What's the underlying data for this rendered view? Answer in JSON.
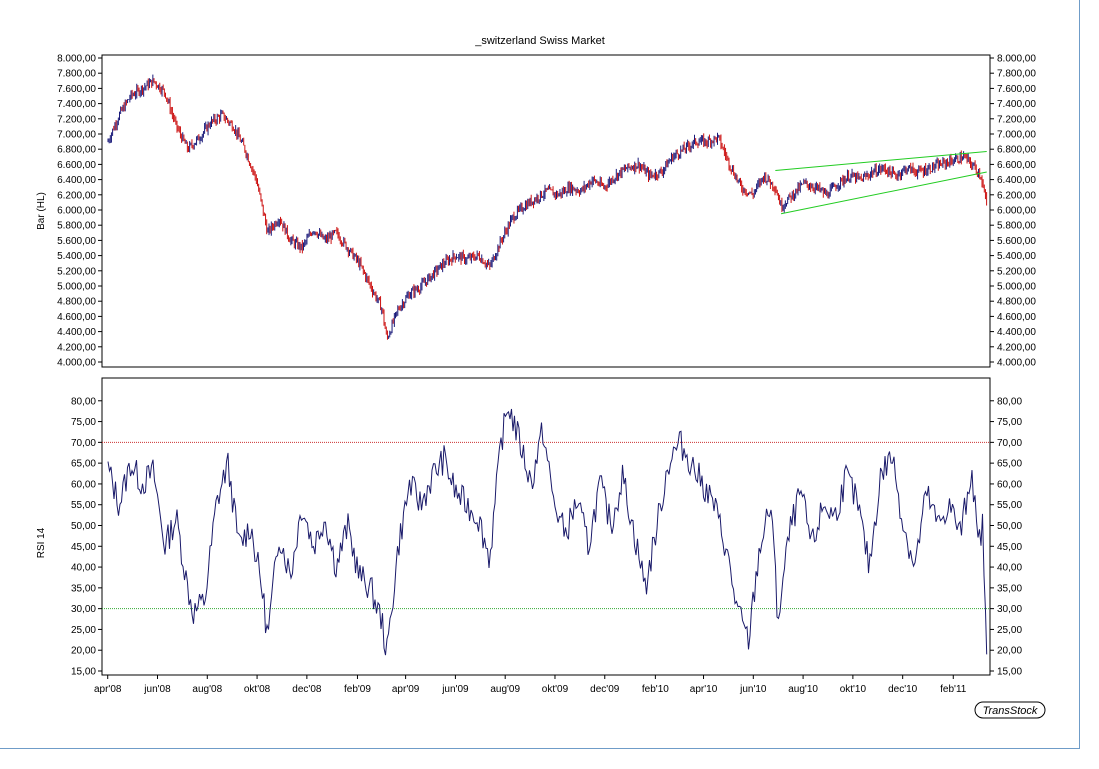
{
  "title": "_switzerland Swiss Market",
  "badge": "TransStock",
  "chart_data": [
    {
      "type": "candlestick",
      "ylabel": "Bar (HL)",
      "ylim": [
        4000,
        8000
      ],
      "yticks": [
        4000,
        4200,
        4400,
        4600,
        4800,
        5000,
        5200,
        5400,
        5600,
        5800,
        6000,
        6200,
        6400,
        6600,
        6800,
        7000,
        7200,
        7400,
        7600,
        7800,
        8000
      ],
      "ytick_labels": [
        "4.000,00",
        "4.200,00",
        "4.400,00",
        "4.600,00",
        "4.800,00",
        "5.000,00",
        "5.200,00",
        "5.400,00",
        "5.600,00",
        "5.800,00",
        "6.000,00",
        "6.200,00",
        "6.400,00",
        "6.600,00",
        "6.800,00",
        "7.000,00",
        "7.200,00",
        "7.400,00",
        "7.600,00",
        "7.800,00",
        "8.000,00"
      ],
      "up_color": "#1a1a7a",
      "down_color": "#cc1111",
      "series": [
        {
          "x": "2008-04-01",
          "close": 6900
        },
        {
          "x": "2008-04-15",
          "close": 7250
        },
        {
          "x": "2008-04-29",
          "close": 7500
        },
        {
          "x": "2008-05-13",
          "close": 7600
        },
        {
          "x": "2008-05-27",
          "close": 7700
        },
        {
          "x": "2008-06-10",
          "close": 7550
        },
        {
          "x": "2008-06-24",
          "close": 7100
        },
        {
          "x": "2008-07-08",
          "close": 6800
        },
        {
          "x": "2008-07-22",
          "close": 6950
        },
        {
          "x": "2008-08-05",
          "close": 7150
        },
        {
          "x": "2008-08-19",
          "close": 7250
        },
        {
          "x": "2008-09-02",
          "close": 7100
        },
        {
          "x": "2008-09-16",
          "close": 6800
        },
        {
          "x": "2008-09-30",
          "close": 6400
        },
        {
          "x": "2008-10-14",
          "close": 5700
        },
        {
          "x": "2008-10-28",
          "close": 5900
        },
        {
          "x": "2008-11-11",
          "close": 5600
        },
        {
          "x": "2008-11-25",
          "close": 5500
        },
        {
          "x": "2008-12-09",
          "close": 5750
        },
        {
          "x": "2008-12-23",
          "close": 5600
        },
        {
          "x": "2009-01-06",
          "close": 5700
        },
        {
          "x": "2009-01-20",
          "close": 5500
        },
        {
          "x": "2009-02-03",
          "close": 5300
        },
        {
          "x": "2009-02-17",
          "close": 5000
        },
        {
          "x": "2009-03-03",
          "close": 4700
        },
        {
          "x": "2009-03-09",
          "close": 4300
        },
        {
          "x": "2009-03-23",
          "close": 4700
        },
        {
          "x": "2009-04-06",
          "close": 4900
        },
        {
          "x": "2009-04-20",
          "close": 5000
        },
        {
          "x": "2009-05-04",
          "close": 5150
        },
        {
          "x": "2009-05-18",
          "close": 5300
        },
        {
          "x": "2009-06-01",
          "close": 5400
        },
        {
          "x": "2009-06-15",
          "close": 5350
        },
        {
          "x": "2009-06-29",
          "close": 5400
        },
        {
          "x": "2009-07-13",
          "close": 5250
        },
        {
          "x": "2009-07-27",
          "close": 5600
        },
        {
          "x": "2009-08-10",
          "close": 5900
        },
        {
          "x": "2009-08-24",
          "close": 6050
        },
        {
          "x": "2009-09-07",
          "close": 6150
        },
        {
          "x": "2009-09-21",
          "close": 6250
        },
        {
          "x": "2009-10-05",
          "close": 6200
        },
        {
          "x": "2009-10-19",
          "close": 6300
        },
        {
          "x": "2009-11-02",
          "close": 6250
        },
        {
          "x": "2009-11-16",
          "close": 6400
        },
        {
          "x": "2009-11-30",
          "close": 6300
        },
        {
          "x": "2009-12-14",
          "close": 6450
        },
        {
          "x": "2009-12-28",
          "close": 6550
        },
        {
          "x": "2010-01-11",
          "close": 6600
        },
        {
          "x": "2010-01-25",
          "close": 6450
        },
        {
          "x": "2010-02-08",
          "close": 6500
        },
        {
          "x": "2010-02-22",
          "close": 6700
        },
        {
          "x": "2010-03-08",
          "close": 6800
        },
        {
          "x": "2010-03-22",
          "close": 6900
        },
        {
          "x": "2010-04-05",
          "close": 6900
        },
        {
          "x": "2010-04-19",
          "close": 6950
        },
        {
          "x": "2010-05-03",
          "close": 6600
        },
        {
          "x": "2010-05-17",
          "close": 6300
        },
        {
          "x": "2010-05-31",
          "close": 6200
        },
        {
          "x": "2010-06-14",
          "close": 6450
        },
        {
          "x": "2010-06-28",
          "close": 6300
        },
        {
          "x": "2010-07-05",
          "close": 6050
        },
        {
          "x": "2010-07-19",
          "close": 6200
        },
        {
          "x": "2010-08-02",
          "close": 6350
        },
        {
          "x": "2010-08-16",
          "close": 6300
        },
        {
          "x": "2010-08-30",
          "close": 6200
        },
        {
          "x": "2010-09-13",
          "close": 6350
        },
        {
          "x": "2010-09-27",
          "close": 6450
        },
        {
          "x": "2010-10-11",
          "close": 6400
        },
        {
          "x": "2010-10-25",
          "close": 6500
        },
        {
          "x": "2010-11-08",
          "close": 6550
        },
        {
          "x": "2010-11-22",
          "close": 6450
        },
        {
          "x": "2010-12-06",
          "close": 6550
        },
        {
          "x": "2010-12-20",
          "close": 6500
        },
        {
          "x": "2011-01-03",
          "close": 6550
        },
        {
          "x": "2011-01-17",
          "close": 6600
        },
        {
          "x": "2011-01-31",
          "close": 6650
        },
        {
          "x": "2011-02-14",
          "close": 6700
        },
        {
          "x": "2011-02-28",
          "close": 6550
        },
        {
          "x": "2011-03-07",
          "close": 6450
        },
        {
          "x": "2011-03-14",
          "close": 6050
        }
      ],
      "trendlines": [
        {
          "color": "#22cc22",
          "points": [
            [
              "2010-06-28",
              6520
            ],
            [
              "2011-03-14",
              6770
            ]
          ]
        },
        {
          "color": "#22cc22",
          "points": [
            [
              "2010-07-05",
              5950
            ],
            [
              "2011-03-14",
              6500
            ]
          ]
        }
      ]
    },
    {
      "type": "line",
      "ylabel": "RSI 14",
      "ylim": [
        15,
        85
      ],
      "yticks": [
        15,
        20,
        25,
        30,
        35,
        40,
        45,
        50,
        55,
        60,
        65,
        70,
        75,
        80
      ],
      "ytick_labels": [
        "15,00",
        "20,00",
        "25,00",
        "30,00",
        "35,00",
        "40,00",
        "45,00",
        "50,00",
        "55,00",
        "60,00",
        "65,00",
        "70,00",
        "75,00",
        "80,00"
      ],
      "color": "#1a1a6a",
      "reference_lines": [
        {
          "value": 70,
          "color": "#cc3333"
        },
        {
          "value": 30,
          "color": "#33aa33"
        }
      ],
      "series": [
        {
          "x": "2008-04-01",
          "y": 64
        },
        {
          "x": "2008-04-15",
          "y": 55
        },
        {
          "x": "2008-04-29",
          "y": 65
        },
        {
          "x": "2008-05-13",
          "y": 60
        },
        {
          "x": "2008-05-27",
          "y": 63
        },
        {
          "x": "2008-06-10",
          "y": 45
        },
        {
          "x": "2008-06-24",
          "y": 52
        },
        {
          "x": "2008-07-08",
          "y": 35
        },
        {
          "x": "2008-07-15",
          "y": 29
        },
        {
          "x": "2008-07-29",
          "y": 32
        },
        {
          "x": "2008-08-12",
          "y": 55
        },
        {
          "x": "2008-08-26",
          "y": 65
        },
        {
          "x": "2008-09-09",
          "y": 45
        },
        {
          "x": "2008-09-23",
          "y": 50
        },
        {
          "x": "2008-10-07",
          "y": 35
        },
        {
          "x": "2008-10-14",
          "y": 23
        },
        {
          "x": "2008-10-28",
          "y": 48
        },
        {
          "x": "2008-11-11",
          "y": 38
        },
        {
          "x": "2008-11-25",
          "y": 55
        },
        {
          "x": "2008-12-09",
          "y": 45
        },
        {
          "x": "2008-12-23",
          "y": 52
        },
        {
          "x": "2009-01-06",
          "y": 40
        },
        {
          "x": "2009-01-20",
          "y": 50
        },
        {
          "x": "2009-02-03",
          "y": 38
        },
        {
          "x": "2009-02-17",
          "y": 35
        },
        {
          "x": "2009-03-03",
          "y": 27
        },
        {
          "x": "2009-03-09",
          "y": 19
        },
        {
          "x": "2009-03-23",
          "y": 45
        },
        {
          "x": "2009-04-06",
          "y": 60
        },
        {
          "x": "2009-04-20",
          "y": 55
        },
        {
          "x": "2009-05-04",
          "y": 62
        },
        {
          "x": "2009-05-18",
          "y": 66
        },
        {
          "x": "2009-06-01",
          "y": 58
        },
        {
          "x": "2009-06-15",
          "y": 55
        },
        {
          "x": "2009-06-29",
          "y": 52
        },
        {
          "x": "2009-07-13",
          "y": 42
        },
        {
          "x": "2009-07-27",
          "y": 70
        },
        {
          "x": "2009-08-05",
          "y": 79
        },
        {
          "x": "2009-08-19",
          "y": 70
        },
        {
          "x": "2009-09-02",
          "y": 60
        },
        {
          "x": "2009-09-16",
          "y": 73
        },
        {
          "x": "2009-09-30",
          "y": 55
        },
        {
          "x": "2009-10-14",
          "y": 48
        },
        {
          "x": "2009-10-28",
          "y": 56
        },
        {
          "x": "2009-11-11",
          "y": 45
        },
        {
          "x": "2009-11-25",
          "y": 60
        },
        {
          "x": "2009-12-09",
          "y": 50
        },
        {
          "x": "2009-12-23",
          "y": 62
        },
        {
          "x": "2010-01-06",
          "y": 48
        },
        {
          "x": "2010-01-20",
          "y": 35
        },
        {
          "x": "2010-02-03",
          "y": 50
        },
        {
          "x": "2010-02-17",
          "y": 65
        },
        {
          "x": "2010-03-03",
          "y": 70
        },
        {
          "x": "2010-03-17",
          "y": 65
        },
        {
          "x": "2010-03-31",
          "y": 60
        },
        {
          "x": "2010-04-14",
          "y": 55
        },
        {
          "x": "2010-04-28",
          "y": 45
        },
        {
          "x": "2010-05-12",
          "y": 30
        },
        {
          "x": "2010-05-26",
          "y": 22
        },
        {
          "x": "2010-06-09",
          "y": 45
        },
        {
          "x": "2010-06-23",
          "y": 55
        },
        {
          "x": "2010-07-01",
          "y": 27
        },
        {
          "x": "2010-07-15",
          "y": 48
        },
        {
          "x": "2010-07-29",
          "y": 58
        },
        {
          "x": "2010-08-12",
          "y": 45
        },
        {
          "x": "2010-08-26",
          "y": 55
        },
        {
          "x": "2010-09-09",
          "y": 52
        },
        {
          "x": "2010-09-23",
          "y": 62
        },
        {
          "x": "2010-10-07",
          "y": 55
        },
        {
          "x": "2010-10-21",
          "y": 40
        },
        {
          "x": "2010-11-04",
          "y": 62
        },
        {
          "x": "2010-11-18",
          "y": 67
        },
        {
          "x": "2010-12-02",
          "y": 50
        },
        {
          "x": "2010-12-16",
          "y": 40
        },
        {
          "x": "2010-12-30",
          "y": 58
        },
        {
          "x": "2011-01-13",
          "y": 50
        },
        {
          "x": "2011-01-27",
          "y": 55
        },
        {
          "x": "2011-02-10",
          "y": 48
        },
        {
          "x": "2011-02-24",
          "y": 64
        },
        {
          "x": "2011-03-03",
          "y": 45
        },
        {
          "x": "2011-03-09",
          "y": 50
        },
        {
          "x": "2011-03-14",
          "y": 19
        }
      ]
    }
  ],
  "x_axis": {
    "start": "2008-03-25",
    "end": "2011-03-18",
    "ticks": [
      {
        "date": "2008-04-01",
        "label": "apr'08"
      },
      {
        "date": "2008-06-01",
        "label": "jun'08"
      },
      {
        "date": "2008-08-01",
        "label": "aug'08"
      },
      {
        "date": "2008-10-01",
        "label": "okt'08"
      },
      {
        "date": "2008-12-01",
        "label": "dec'08"
      },
      {
        "date": "2009-02-01",
        "label": "feb'09"
      },
      {
        "date": "2009-04-01",
        "label": "apr'09"
      },
      {
        "date": "2009-06-01",
        "label": "jun'09"
      },
      {
        "date": "2009-08-01",
        "label": "aug'09"
      },
      {
        "date": "2009-10-01",
        "label": "okt'09"
      },
      {
        "date": "2009-12-01",
        "label": "dec'09"
      },
      {
        "date": "2010-02-01",
        "label": "feb'10"
      },
      {
        "date": "2010-04-01",
        "label": "apr'10"
      },
      {
        "date": "2010-06-01",
        "label": "jun'10"
      },
      {
        "date": "2010-08-01",
        "label": "aug'10"
      },
      {
        "date": "2010-10-01",
        "label": "okt'10"
      },
      {
        "date": "2010-12-01",
        "label": "dec'10"
      },
      {
        "date": "2011-02-01",
        "label": "feb'11"
      }
    ]
  }
}
